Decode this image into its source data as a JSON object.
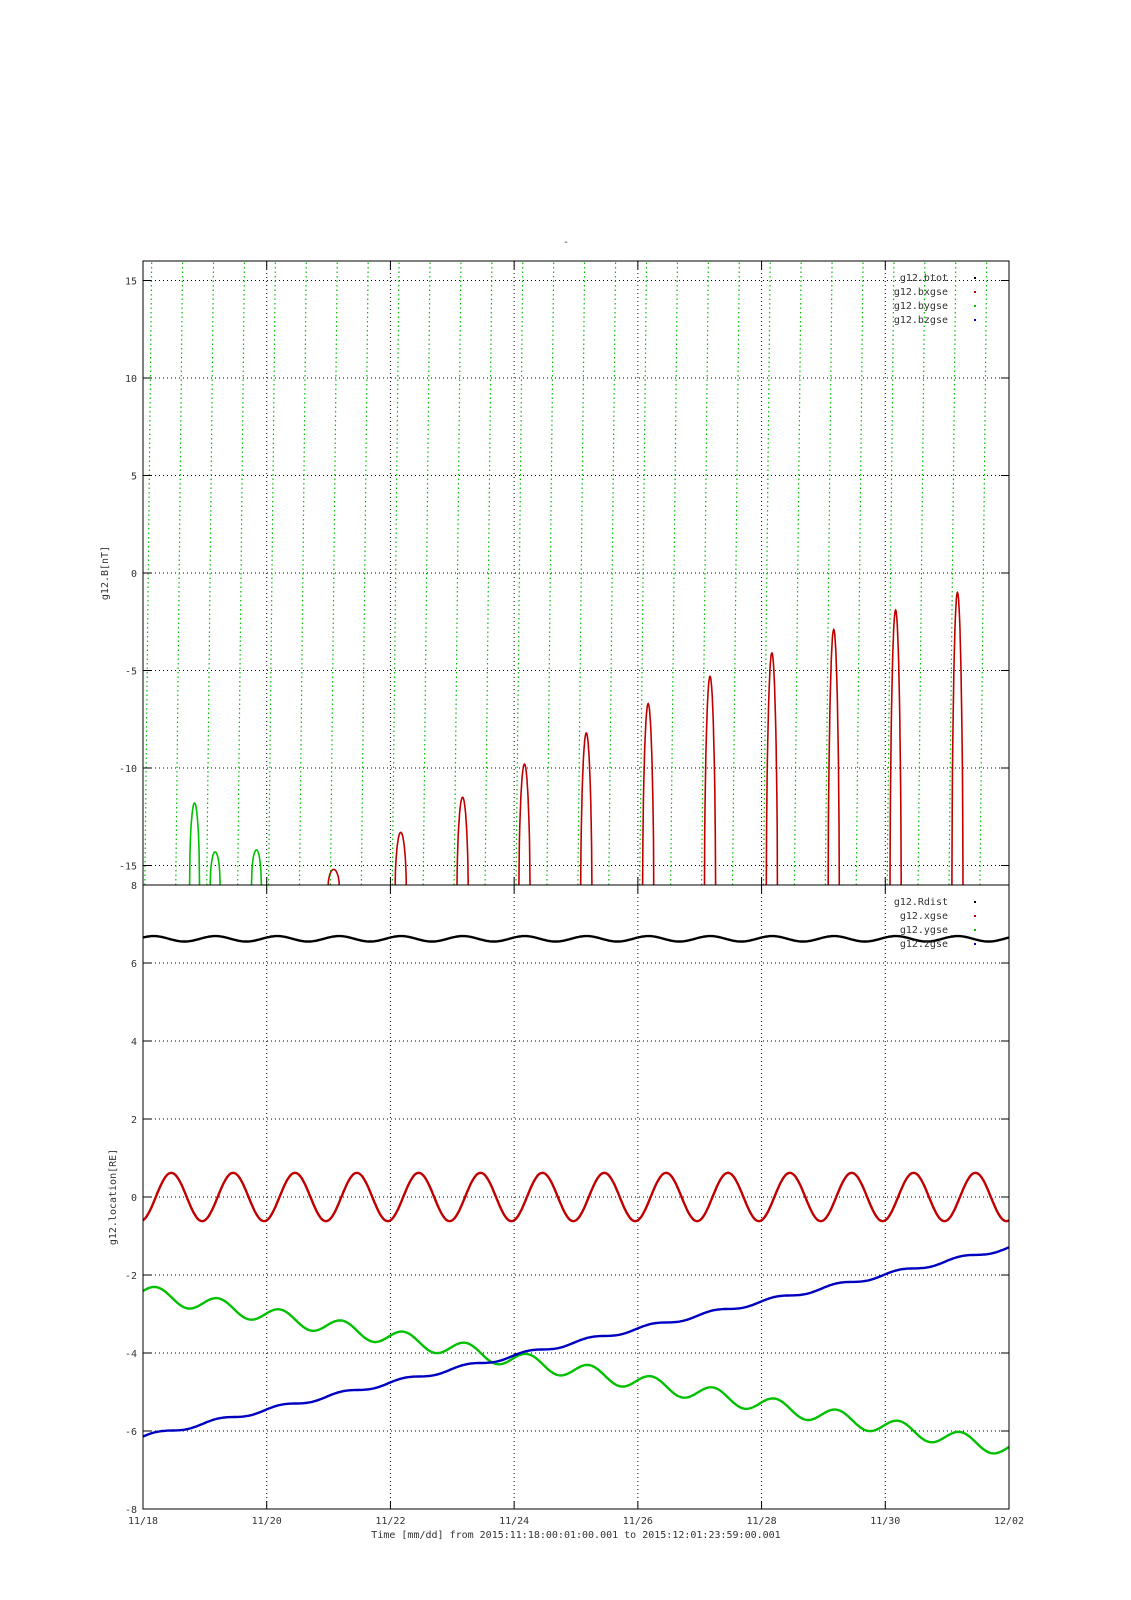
{
  "title": "-",
  "xlabel": "Time [mm/dd]  from 2015:11:18:00:01:00.001  to  2015:12:01:23:59:00.001",
  "x_ticks": [
    "11/18",
    "11/20",
    "11/22",
    "11/24",
    "11/26",
    "11/28",
    "11/30",
    "12/02"
  ],
  "chart_data": [
    {
      "type": "line",
      "ylabel": "g12.B[nT]",
      "xlim": [
        "11/18",
        "12/02"
      ],
      "ylim": [
        -16,
        16
      ],
      "y_ticks": [
        "15",
        "10",
        "5",
        "0",
        "-5",
        "-10",
        "-15"
      ],
      "grid": true,
      "legend_position": "top-right",
      "series": [
        {
          "name": "g12.btot",
          "color": "#000000",
          "note": "off-scale (above plot range)"
        },
        {
          "name": "g12.bxgse",
          "color": "#c00000",
          "peaks": [
            {
              "x": "11/21 02:00",
              "y": -15.2
            },
            {
              "x": "11/22 04:00",
              "y": -13.3
            },
            {
              "x": "11/23 04:00",
              "y": -11.5
            },
            {
              "x": "11/24 04:00",
              "y": -9.8
            },
            {
              "x": "11/25 04:00",
              "y": -8.2
            },
            {
              "x": "11/26 04:00",
              "y": -6.7
            },
            {
              "x": "11/27 04:00",
              "y": -5.3
            },
            {
              "x": "11/28 04:00",
              "y": -4.1
            },
            {
              "x": "11/29 04:00",
              "y": -2.9
            },
            {
              "x": "11/30 04:00",
              "y": -1.9
            },
            {
              "x": "12/01 04:00",
              "y": -1.0
            }
          ]
        },
        {
          "name": "g12.bygse",
          "color": "#00c000",
          "note": "dotted near-vertical traces sweeping through full range",
          "visible_features": [
            {
              "x": "11/18 20:00",
              "y": -11.8
            },
            {
              "x": "11/19 04:00",
              "y": -14.3
            },
            {
              "x": "11/19 20:00",
              "y": -14.2
            }
          ]
        },
        {
          "name": "g12.bzgse",
          "color": "#0000c0",
          "note": "off-scale"
        }
      ]
    },
    {
      "type": "line",
      "ylabel": "g12.location[RE]",
      "xlim": [
        "11/18",
        "12/02"
      ],
      "ylim": [
        -8,
        8
      ],
      "y_ticks": [
        "8",
        "6",
        "4",
        "2",
        "0",
        "-2",
        "-4",
        "-6",
        "-8"
      ],
      "grid": true,
      "legend_position": "top-right",
      "series": [
        {
          "name": "g12.Rdist",
          "color": "#000000",
          "mean": 6.62,
          "amplitude": 0.07,
          "period_days": 1
        },
        {
          "name": "g12.xgse",
          "color": "#c00000",
          "mean": 0.0,
          "amplitude": 0.62,
          "period_days": 1
        },
        {
          "name": "g12.ygse",
          "color": "#00c000",
          "start": -2.45,
          "end": -6.45,
          "amplitude": 0.2,
          "period_days": 1
        },
        {
          "name": "g12.zgse",
          "color": "#0000c0",
          "start": -6.15,
          "end": -1.3,
          "amplitude": 0.05,
          "period_days": 1
        }
      ]
    }
  ]
}
